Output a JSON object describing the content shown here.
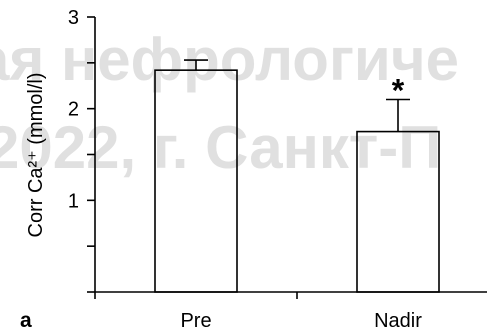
{
  "figure": {
    "panel_label": "a"
  },
  "watermark": {
    "line1": "ая нефрологиче",
    "line2": "2022, г. Санкт-П"
  },
  "chart_data": {
    "type": "bar",
    "title": "",
    "xlabel": "",
    "ylabel": "Corr Ca²⁺ (mmol/l)",
    "categories": [
      "Pre",
      "Nadir"
    ],
    "values": [
      2.42,
      1.75
    ],
    "error_upper": [
      0.11,
      0.35
    ],
    "ylim": [
      0,
      3
    ],
    "yticks": [
      0,
      0.5,
      1,
      1.5,
      2,
      2.5,
      3
    ],
    "ytick_labels": [
      "",
      "",
      "1",
      "",
      "2",
      "",
      "3"
    ],
    "annotations": [
      {
        "category": "Nadir",
        "text": "*"
      }
    ],
    "grid": false,
    "legend": "none",
    "colors": {
      "bar_fill": "none",
      "bar_stroke": "#000000",
      "axis": "#000000",
      "watermark": "#e0e0e0"
    }
  }
}
